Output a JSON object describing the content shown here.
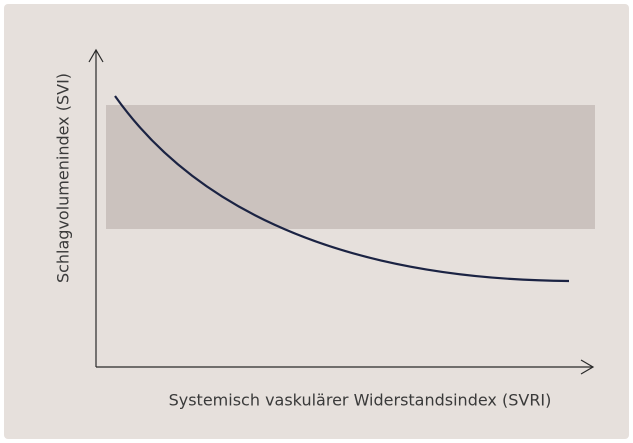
{
  "x_label": "Systemisch vaskulärer Widerstandsindex (SVRI)",
  "y_label": "Schlagvolumenindex (SVI)"
}
